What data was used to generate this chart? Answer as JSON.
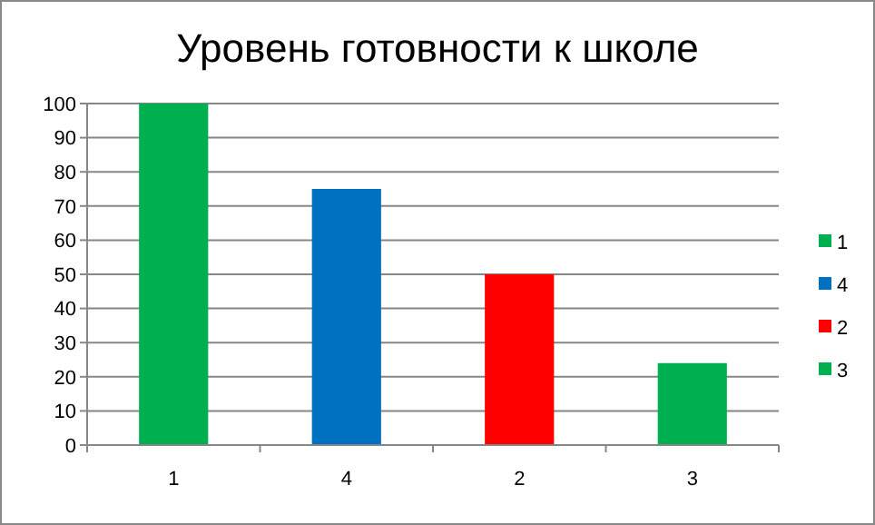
{
  "chart_data": {
    "type": "bar",
    "title": "Уровень готовности к школе",
    "categories": [
      "1",
      "4",
      "2",
      "3"
    ],
    "series": [
      {
        "name": "1",
        "color": "#00b050",
        "values": [
          100,
          null,
          null,
          null
        ]
      },
      {
        "name": "4",
        "color": "#0070c0",
        "values": [
          null,
          75,
          null,
          null
        ]
      },
      {
        "name": "2",
        "color": "#ff0000",
        "values": [
          null,
          null,
          50,
          null
        ]
      },
      {
        "name": "3",
        "color": "#00b050",
        "values": [
          null,
          null,
          null,
          24
        ]
      }
    ],
    "ylim": [
      0,
      100
    ],
    "yticks": [
      0,
      10,
      20,
      30,
      40,
      50,
      60,
      70,
      80,
      90,
      100
    ],
    "grid": "y",
    "legend": "right"
  }
}
